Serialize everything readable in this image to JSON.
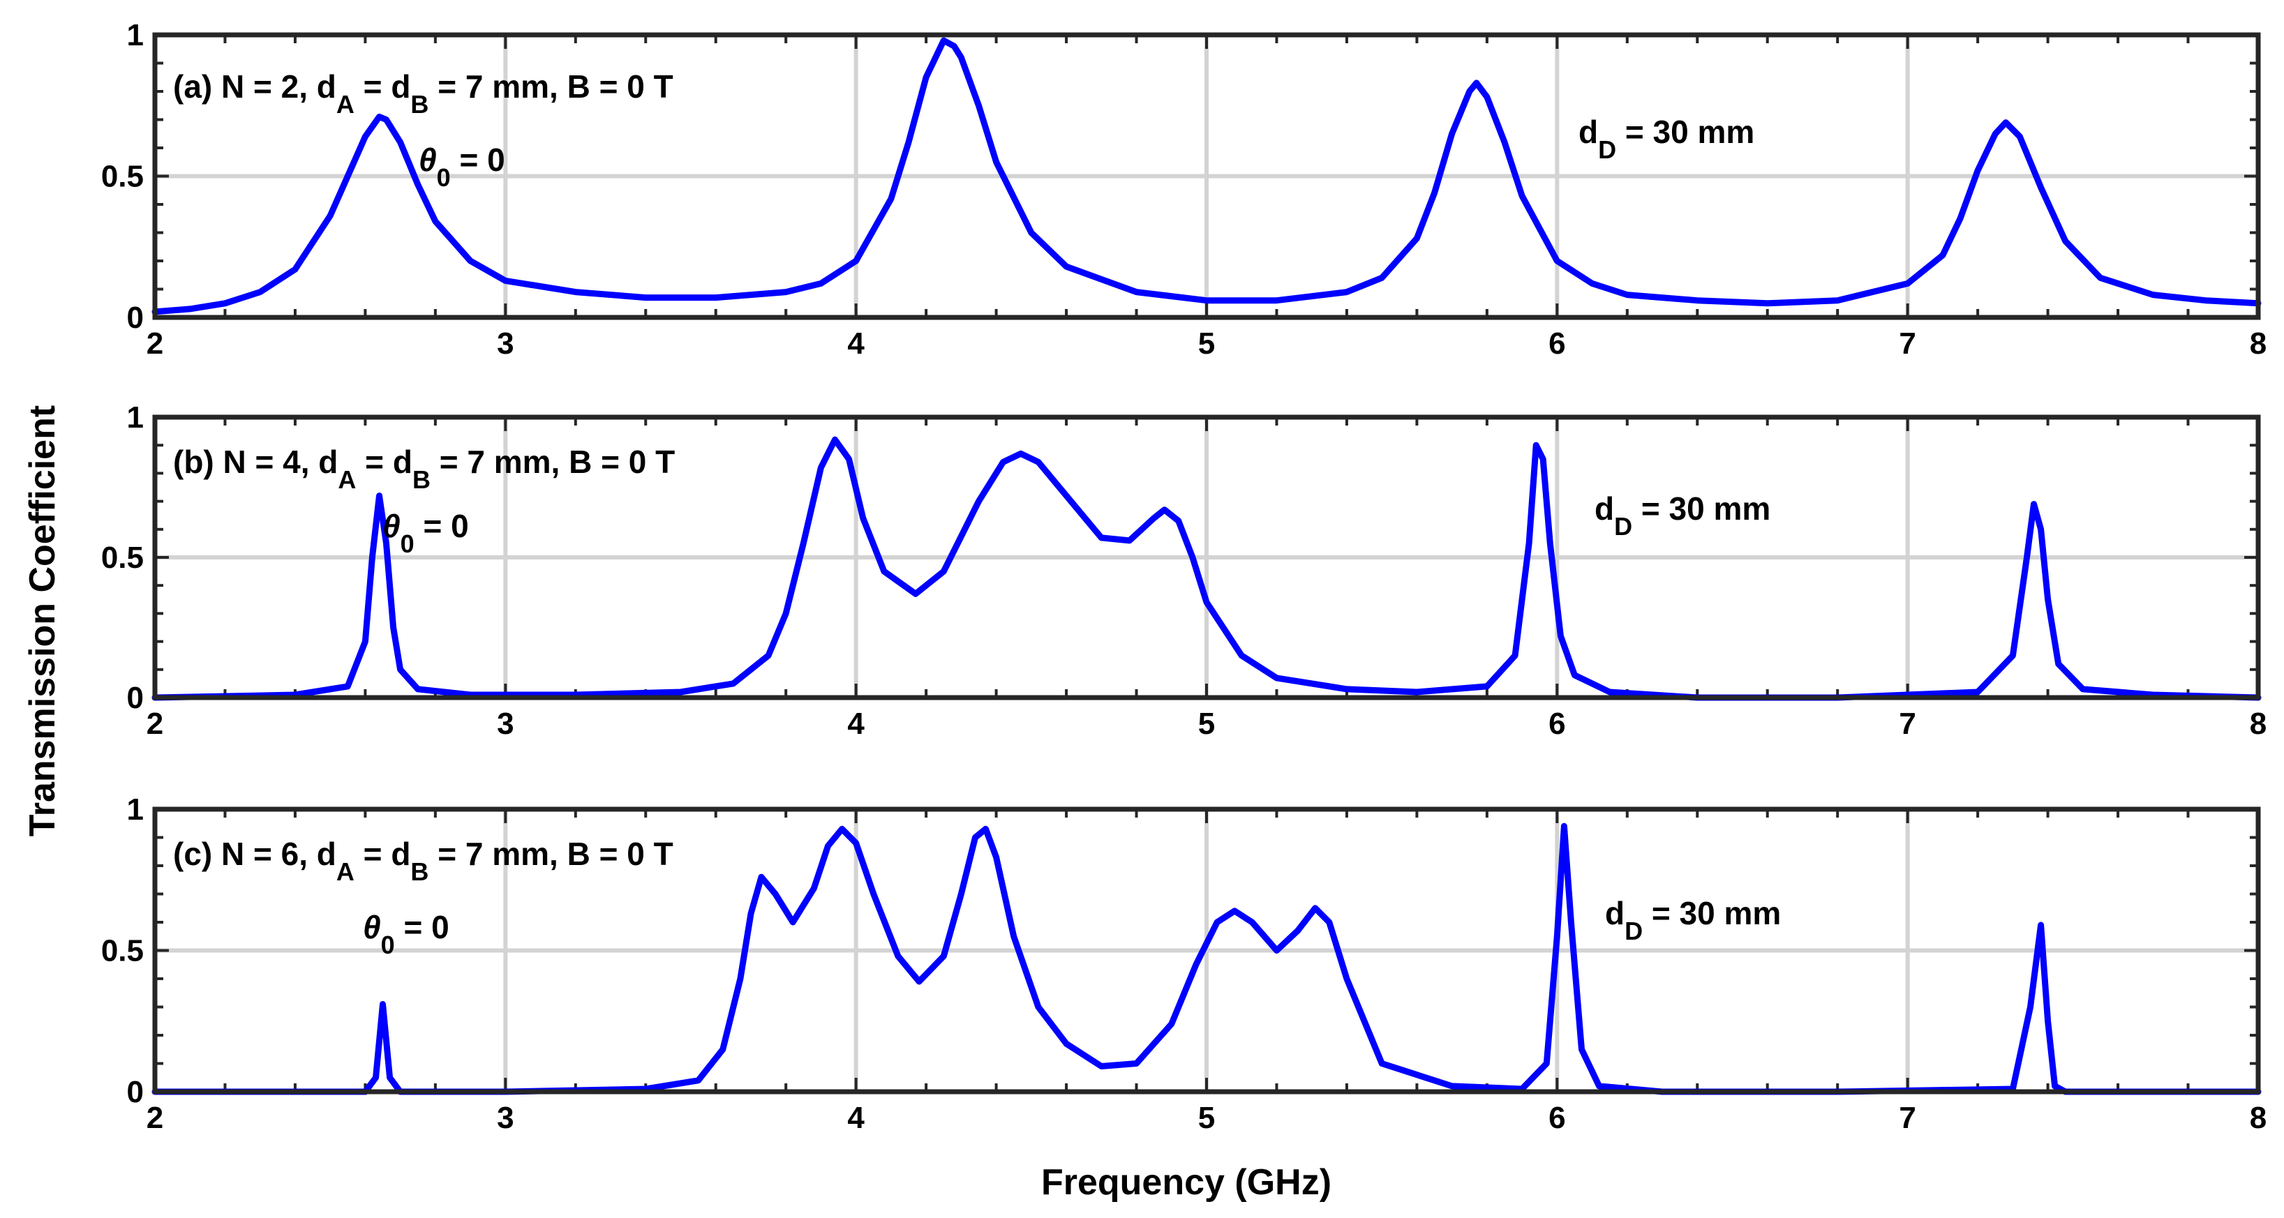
{
  "colors": {
    "line": "#0000ff",
    "grid": "#d3d3d3",
    "axes": "#262626",
    "text": "#000000"
  },
  "xlabel": "Frequency (GHz)",
  "ylabel": "Transmission Coefficient",
  "chart_data": [
    {
      "type": "line",
      "panel": "a",
      "xlim": [
        2,
        8
      ],
      "ylim": [
        0,
        1
      ],
      "grid": true,
      "xticks": [
        "2",
        "3",
        "4",
        "5",
        "6",
        "7",
        "8"
      ],
      "yticks": [
        "0",
        "0.5",
        "1"
      ],
      "annotation": {
        "prefix": "(a) N = 2, d",
        "sub_a": "A",
        "mid": " = d",
        "sub_b": "B",
        "suffix": " = 7 mm, B = 0 T"
      },
      "theta": {
        "sym": "θ",
        "sub": "0",
        "rest": " = 0"
      },
      "dd": {
        "base": "d",
        "sub": "D",
        "rest": " = 30 mm"
      },
      "series": [
        {
          "x": [
            2.0,
            2.1,
            2.2,
            2.3,
            2.4,
            2.5,
            2.55,
            2.6,
            2.64,
            2.66,
            2.7,
            2.75,
            2.8,
            2.9,
            3.0,
            3.2,
            3.4,
            3.6,
            3.8,
            3.9,
            4.0,
            4.1,
            4.15,
            4.2,
            4.25,
            4.28,
            4.3,
            4.35,
            4.4,
            4.5,
            4.6,
            4.8,
            5.0,
            5.2,
            5.4,
            5.5,
            5.6,
            5.65,
            5.7,
            5.75,
            5.77,
            5.8,
            5.85,
            5.9,
            6.0,
            6.1,
            6.2,
            6.4,
            6.6,
            6.8,
            7.0,
            7.1,
            7.15,
            7.2,
            7.25,
            7.28,
            7.32,
            7.38,
            7.45,
            7.55,
            7.7,
            7.85,
            8.0
          ],
          "y": [
            0.02,
            0.03,
            0.05,
            0.09,
            0.17,
            0.36,
            0.5,
            0.64,
            0.71,
            0.7,
            0.62,
            0.47,
            0.34,
            0.2,
            0.13,
            0.09,
            0.07,
            0.07,
            0.09,
            0.12,
            0.2,
            0.42,
            0.62,
            0.85,
            0.98,
            0.96,
            0.92,
            0.75,
            0.55,
            0.3,
            0.18,
            0.09,
            0.06,
            0.06,
            0.09,
            0.14,
            0.28,
            0.44,
            0.65,
            0.8,
            0.83,
            0.78,
            0.62,
            0.43,
            0.2,
            0.12,
            0.08,
            0.06,
            0.05,
            0.06,
            0.12,
            0.22,
            0.35,
            0.52,
            0.65,
            0.69,
            0.64,
            0.46,
            0.27,
            0.14,
            0.08,
            0.06,
            0.05
          ]
        }
      ]
    },
    {
      "type": "line",
      "panel": "b",
      "xlim": [
        2,
        8
      ],
      "ylim": [
        0,
        1
      ],
      "grid": true,
      "xticks": [
        "2",
        "3",
        "4",
        "5",
        "6",
        "7",
        "8"
      ],
      "yticks": [
        "0",
        "0.5",
        "1"
      ],
      "annotation": {
        "prefix": "(b) N = 4, d",
        "sub_a": "A",
        "mid": " = d",
        "sub_b": "B",
        "suffix": " = 7 mm, B = 0 T"
      },
      "theta": {
        "sym": "θ",
        "sub": "0",
        "rest": " = 0"
      },
      "dd": {
        "base": "d",
        "sub": "D",
        "rest": " = 30 mm"
      },
      "series": [
        {
          "x": [
            2.0,
            2.4,
            2.55,
            2.6,
            2.62,
            2.64,
            2.66,
            2.68,
            2.7,
            2.75,
            2.9,
            3.2,
            3.5,
            3.65,
            3.75,
            3.8,
            3.85,
            3.9,
            3.94,
            3.98,
            4.02,
            4.08,
            4.17,
            4.25,
            4.35,
            4.42,
            4.47,
            4.52,
            4.6,
            4.7,
            4.78,
            4.85,
            4.88,
            4.92,
            4.96,
            5.0,
            5.1,
            5.2,
            5.4,
            5.6,
            5.8,
            5.88,
            5.92,
            5.94,
            5.96,
            5.98,
            6.01,
            6.05,
            6.15,
            6.4,
            6.8,
            7.2,
            7.3,
            7.34,
            7.36,
            7.38,
            7.4,
            7.43,
            7.5,
            7.7,
            8.0
          ],
          "y": [
            0.0,
            0.01,
            0.04,
            0.2,
            0.5,
            0.72,
            0.55,
            0.25,
            0.1,
            0.03,
            0.01,
            0.01,
            0.02,
            0.05,
            0.15,
            0.3,
            0.55,
            0.82,
            0.92,
            0.85,
            0.64,
            0.45,
            0.37,
            0.45,
            0.7,
            0.84,
            0.87,
            0.84,
            0.72,
            0.57,
            0.56,
            0.64,
            0.67,
            0.63,
            0.5,
            0.34,
            0.15,
            0.07,
            0.03,
            0.02,
            0.04,
            0.15,
            0.55,
            0.9,
            0.85,
            0.55,
            0.22,
            0.08,
            0.02,
            0.0,
            0.0,
            0.02,
            0.15,
            0.5,
            0.69,
            0.6,
            0.35,
            0.12,
            0.03,
            0.01,
            0.0
          ]
        }
      ]
    },
    {
      "type": "line",
      "panel": "c",
      "xlim": [
        2,
        8
      ],
      "ylim": [
        0,
        1
      ],
      "grid": true,
      "xticks": [
        "2",
        "3",
        "4",
        "5",
        "6",
        "7",
        "8"
      ],
      "yticks": [
        "0",
        "0.5",
        "1"
      ],
      "annotation": {
        "prefix": "(c) N = 6, d",
        "sub_a": "A",
        "mid": " = d",
        "sub_b": "B",
        "suffix": " = 7 mm, B = 0 T"
      },
      "theta": {
        "sym": "θ",
        "sub": "0",
        "rest": " = 0"
      },
      "dd": {
        "base": "d",
        "sub": "D",
        "rest": " = 30 mm"
      },
      "series": [
        {
          "x": [
            2.0,
            2.6,
            2.63,
            2.65,
            2.67,
            2.7,
            3.0,
            3.4,
            3.55,
            3.62,
            3.67,
            3.7,
            3.73,
            3.77,
            3.82,
            3.88,
            3.92,
            3.96,
            4.0,
            4.05,
            4.12,
            4.18,
            4.25,
            4.3,
            4.34,
            4.37,
            4.4,
            4.45,
            4.52,
            4.6,
            4.7,
            4.8,
            4.9,
            4.97,
            5.03,
            5.08,
            5.13,
            5.2,
            5.26,
            5.31,
            5.35,
            5.4,
            5.5,
            5.7,
            5.9,
            5.97,
            6.0,
            6.02,
            6.04,
            6.07,
            6.12,
            6.3,
            6.8,
            7.3,
            7.35,
            7.38,
            7.4,
            7.42,
            7.45,
            7.6,
            8.0
          ],
          "y": [
            0.0,
            0.0,
            0.05,
            0.31,
            0.05,
            0.0,
            0.0,
            0.01,
            0.04,
            0.15,
            0.4,
            0.63,
            0.76,
            0.7,
            0.6,
            0.72,
            0.87,
            0.93,
            0.88,
            0.7,
            0.48,
            0.39,
            0.48,
            0.7,
            0.9,
            0.93,
            0.83,
            0.55,
            0.3,
            0.17,
            0.09,
            0.1,
            0.24,
            0.45,
            0.6,
            0.64,
            0.6,
            0.5,
            0.57,
            0.65,
            0.6,
            0.4,
            0.1,
            0.02,
            0.01,
            0.1,
            0.55,
            0.94,
            0.6,
            0.15,
            0.02,
            0.0,
            0.0,
            0.01,
            0.3,
            0.59,
            0.25,
            0.02,
            0.0,
            0.0,
            0.0
          ]
        }
      ]
    }
  ]
}
